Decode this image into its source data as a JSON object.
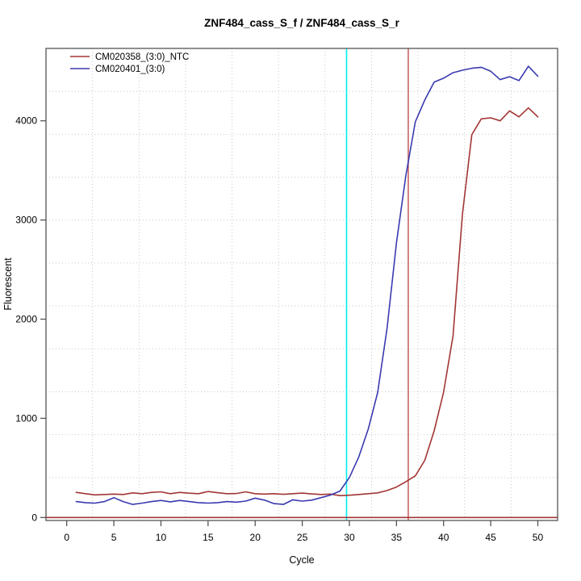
{
  "chart": {
    "title": "ZNF484_cass_S_f / ZNF484_cass_S_r",
    "xlabel": "Cycle",
    "ylabel": "Fluorescent"
  },
  "chart_data": {
    "type": "line",
    "title": "ZNF484_cass_S_f / ZNF484_cass_S_r",
    "xlabel": "Cycle",
    "ylabel": "Fluorescent",
    "xlim": [
      -2.2,
      52.1
    ],
    "ylim": [
      -30,
      4730
    ],
    "x_ticks": [
      0,
      5,
      10,
      15,
      20,
      25,
      30,
      35,
      40,
      45,
      50
    ],
    "y_ticks": [
      0,
      1000,
      2000,
      3000,
      4000
    ],
    "grid": "dotted lightgray, 11 x 11 divisions of plot box",
    "legend_position": "top-left",
    "x": [
      1,
      2,
      3,
      4,
      5,
      6,
      7,
      8,
      9,
      10,
      11,
      12,
      13,
      14,
      15,
      16,
      17,
      18,
      19,
      20,
      21,
      22,
      23,
      24,
      25,
      26,
      27,
      28,
      29,
      30,
      31,
      32,
      33,
      34,
      35,
      36,
      37,
      38,
      39,
      40,
      41,
      42,
      43,
      44,
      45,
      46,
      47,
      48,
      49,
      50
    ],
    "series": [
      {
        "name": "CM020358_(3:0)_NTC",
        "color": "#A33535",
        "values": [
          253,
          240,
          228,
          232,
          236,
          232,
          248,
          240,
          253,
          259,
          240,
          253,
          245,
          240,
          262,
          250,
          240,
          242,
          259,
          240,
          236,
          240,
          234,
          240,
          246,
          238,
          232,
          236,
          221,
          225,
          232,
          240,
          248,
          272,
          307,
          361,
          420,
          576,
          873,
          1263,
          1830,
          3060,
          3860,
          4020,
          4030,
          4000,
          4100,
          4040,
          4130,
          4040
        ]
      },
      {
        "name": "CM020401_(3:0)",
        "color": "#3A3AB0",
        "values": [
          160,
          150,
          145,
          160,
          200,
          160,
          132,
          145,
          160,
          172,
          158,
          172,
          160,
          150,
          145,
          150,
          160,
          155,
          165,
          195,
          175,
          140,
          132,
          178,
          165,
          175,
          200,
          226,
          267,
          404,
          610,
          890,
          1260,
          1910,
          2770,
          3450,
          3990,
          4210,
          4390,
          4430,
          4485,
          4510,
          4530,
          4540,
          4500,
          4415,
          4445,
          4405,
          4550,
          4450
        ]
      }
    ],
    "reference_lines": {
      "vlines": [
        {
          "x": 29.7,
          "color": "#00EEEE",
          "name": "threshold-line-cyan"
        },
        {
          "x": 36.25,
          "color": "#C86464",
          "name": "ct-line-red"
        }
      ],
      "hlines": [
        {
          "y": 0,
          "color": "#A33535",
          "name": "zero-baseline"
        }
      ]
    }
  },
  "colors": {
    "grid": "#C8C8C8",
    "box": "#555555",
    "background": "#FFFFFF"
  }
}
